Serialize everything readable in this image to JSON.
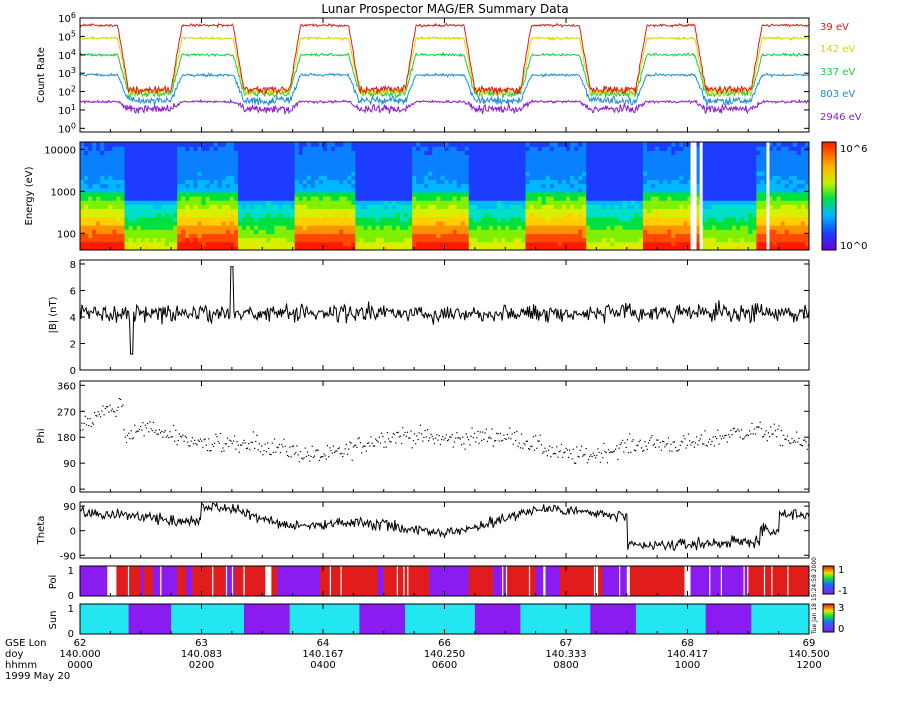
{
  "chart_data": {
    "type": "multi-panel-timeseries",
    "title": "Lunar Prospector MAG/ER Summary Data",
    "date_label": "1999 May 20",
    "vertical_stamp": "Tue Jan 18 15:24:58 2000",
    "x_axis": {
      "row_labels": [
        "GSE Lon",
        "doy",
        "hhmm"
      ],
      "ticks": [
        {
          "lon": "62",
          "doy": "140.000",
          "hhmm": "0000"
        },
        {
          "lon": "63",
          "doy": "140.083",
          "hhmm": "0200"
        },
        {
          "lon": "64",
          "doy": "140.167",
          "hhmm": "0400"
        },
        {
          "lon": "66",
          "doy": "140.250",
          "hhmm": "0600"
        },
        {
          "lon": "67",
          "doy": "140.333",
          "hhmm": "0800"
        },
        {
          "lon": "68",
          "doy": "140.417",
          "hhmm": "1000"
        },
        {
          "lon": "69",
          "doy": "140.500",
          "hhmm": "1200"
        }
      ]
    },
    "orbit": {
      "period_hours": 1.98,
      "night_windows_hours": [
        [
          0.8,
          1.5
        ],
        [
          2.7,
          3.45
        ],
        [
          4.6,
          5.35
        ],
        [
          6.5,
          7.25
        ],
        [
          8.4,
          9.15
        ],
        [
          10.3,
          11.05
        ]
      ]
    },
    "panels": [
      {
        "name": "count-rate",
        "ylabel": "Count Rate",
        "yticks": [
          "10^0",
          "10^1",
          "10^2",
          "10^3",
          "10^4",
          "10^5",
          "10^6"
        ],
        "log_range": [
          -0.2,
          6
        ],
        "series": [
          {
            "label": "39 eV",
            "color": "#e11c1c",
            "day_log": 5.6,
            "night_log": 2.1
          },
          {
            "label": "142 eV",
            "color": "#d8d800",
            "day_log": 4.9,
            "night_log": 2.0
          },
          {
            "label": "337 eV",
            "color": "#1ccc3c",
            "day_log": 4.0,
            "night_log": 1.9
          },
          {
            "label": "803 eV",
            "color": "#1c8fd4",
            "day_log": 2.9,
            "night_log": 1.5
          },
          {
            "label": "2946 eV",
            "color": "#8c1cd6",
            "day_log": 1.45,
            "night_log": 1.05
          }
        ]
      },
      {
        "name": "energy-spectrogram",
        "ylabel": "Energy (eV)",
        "yticks": [
          "100",
          "1000",
          "10000"
        ],
        "energy_range_ev": [
          40,
          15000
        ],
        "colorbar": {
          "min": "10^0",
          "max": "10^6"
        }
      },
      {
        "name": "b-magnitude",
        "ylabel": "|B| (nT)",
        "yticks": [
          "0",
          "2",
          "4",
          "6",
          "8"
        ],
        "ylim": [
          0,
          8.3
        ],
        "mean_nT": 4.3
      },
      {
        "name": "phi",
        "ylabel": "Phi",
        "yticks": [
          "0",
          "90",
          "180",
          "270",
          "360"
        ],
        "ylim": [
          -10,
          375
        ],
        "mean_deg": 160
      },
      {
        "name": "theta",
        "ylabel": "Theta",
        "yticks": [
          "-90",
          "0",
          "90"
        ],
        "ylim": [
          -100,
          105
        ],
        "mean_deg": 40
      },
      {
        "name": "polarity",
        "ylabel": "Pol",
        "yticks": [
          "0",
          "1"
        ],
        "colorbar": {
          "labels": [
            "1",
            "-1"
          ],
          "colors": [
            "#e11c1c",
            "#8a1cf2"
          ]
        }
      },
      {
        "name": "sun",
        "ylabel": "Sun",
        "yticks": [
          "0",
          "1"
        ],
        "colorbar": {
          "labels": [
            "3",
            "0"
          ],
          "colors": [
            "#22e6f0",
            "#8a1cf2"
          ]
        }
      }
    ]
  },
  "colors": {
    "frame": "#000000",
    "cyan": "#22e6f0",
    "purple": "#8a1cf2",
    "red": "#e11c1c"
  }
}
